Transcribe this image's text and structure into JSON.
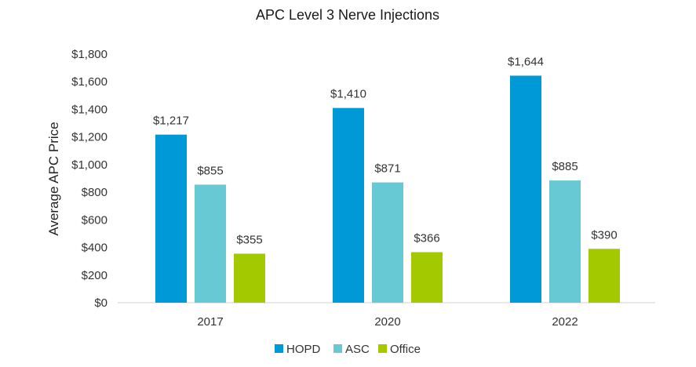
{
  "chart_data": {
    "type": "bar",
    "title": "APC Level 3 Nerve Injections",
    "ylabel": "Average APC Price",
    "xlabel": "",
    "categories": [
      "2017",
      "2020",
      "2022"
    ],
    "series": [
      {
        "name": "HOPD",
        "color": "#0099d8",
        "values": [
          1217,
          1410,
          1644
        ],
        "labels": [
          "$1,217",
          "$1,410",
          "$1,644"
        ]
      },
      {
        "name": "ASC",
        "color": "#66c9d4",
        "values": [
          855,
          871,
          885
        ],
        "labels": [
          "$855",
          "$871",
          "$885"
        ]
      },
      {
        "name": "Office",
        "color": "#a3c900",
        "values": [
          355,
          366,
          390
        ],
        "labels": [
          "$355",
          "$366",
          "$390"
        ]
      }
    ],
    "ylim": [
      0,
      1800
    ],
    "yticks": [
      0,
      200,
      400,
      600,
      800,
      1000,
      1200,
      1400,
      1600,
      1800
    ],
    "ytick_labels": [
      "$0",
      "$200",
      "$400",
      "$600",
      "$800",
      "$1,000",
      "$1,200",
      "$1,400",
      "$1,600",
      "$1,800"
    ],
    "grid": false,
    "legend": "bottom-center"
  }
}
